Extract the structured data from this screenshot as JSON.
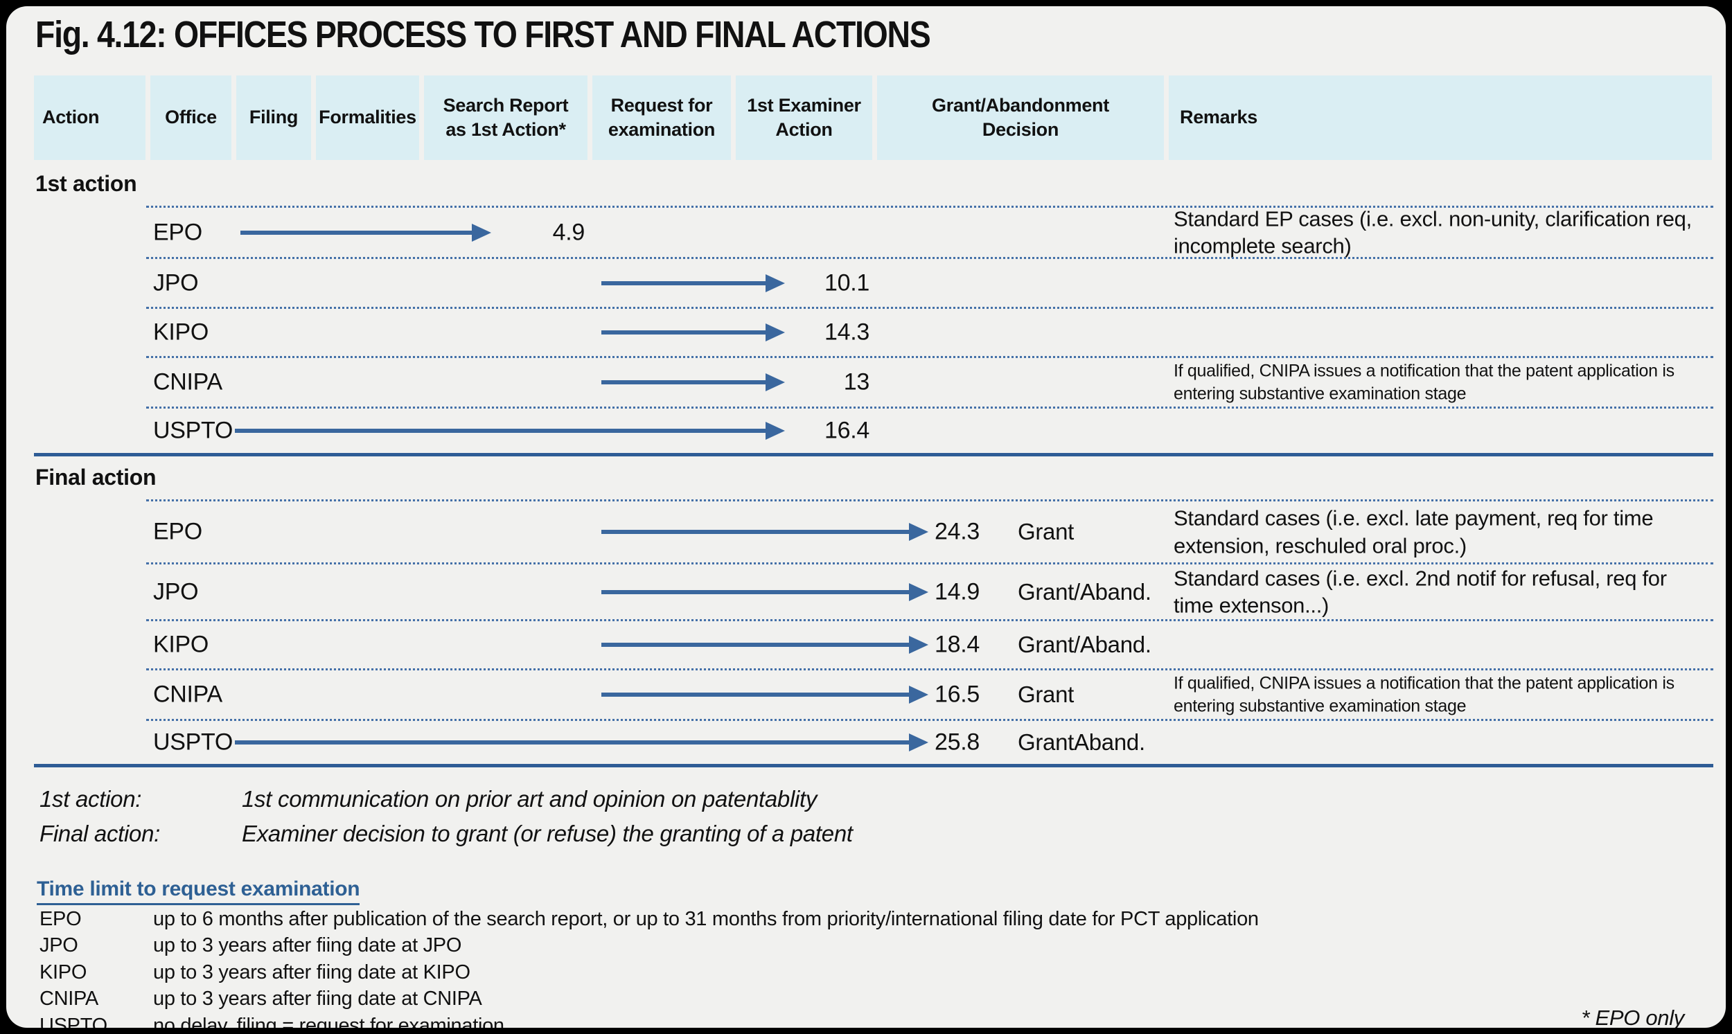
{
  "title": "Fig. 4.12: OFFICES PROCESS TO FIRST AND FINAL ACTIONS",
  "columns": [
    "Action",
    "Office",
    "Filing",
    "Formalities",
    "Search  Report\nas 1st Action*",
    "Request for\nexamination",
    "1st Examiner\nAction",
    "Grant/Abandonment\nDecision",
    "Remarks"
  ],
  "sections": [
    {
      "label": "1st action",
      "rows": [
        {
          "office": "EPO",
          "value": "4.9",
          "remark": "Standard EP cases (i.e. excl. non-unity, clarification req, incomplete search)",
          "arrow": {
            "from": "Filing",
            "to": "Search Report as 1st Action"
          }
        },
        {
          "office": "JPO",
          "value": "10.1",
          "remark": "",
          "arrow": {
            "from": "Request for examination",
            "to": "1st Examiner Action"
          }
        },
        {
          "office": "KIPO",
          "value": "14.3",
          "remark": "",
          "arrow": {
            "from": "Request for examination",
            "to": "1st Examiner Action"
          }
        },
        {
          "office": "CNIPA",
          "value": "13",
          "remark": "If qualified, CNIPA issues a notification that the patent application is entering substantive examination stage",
          "arrow": {
            "from": "Request for examination",
            "to": "1st Examiner Action"
          }
        },
        {
          "office": "USPTO",
          "value": "16.4",
          "remark": "",
          "arrow": {
            "from": "Filing",
            "to": "1st Examiner Action"
          }
        }
      ]
    },
    {
      "label": "Final action",
      "rows": [
        {
          "office": "EPO",
          "value": "24.3",
          "decision": "Grant",
          "remark": "Standard cases (i.e. excl. late payment, req for time extension, reschuled oral proc.)",
          "arrow": {
            "from": "Request for examination",
            "to": "Grant/Abandonment Decision"
          }
        },
        {
          "office": "JPO",
          "value": "14.9",
          "decision": "Grant/Aband.",
          "remark": "Standard cases (i.e. excl. 2nd notif for refusal, req for time extenson...)",
          "arrow": {
            "from": "Request for examination",
            "to": "Grant/Abandonment Decision"
          }
        },
        {
          "office": "KIPO",
          "value": "18.4",
          "decision": "Grant/Aband.",
          "remark": "",
          "arrow": {
            "from": "Request for examination",
            "to": "Grant/Abandonment Decision"
          }
        },
        {
          "office": "CNIPA",
          "value": "16.5",
          "decision": "Grant",
          "remark": "If qualified, CNIPA issues a notification that the patent application is entering substantive examination stage",
          "arrow": {
            "from": "Request for examination",
            "to": "Grant/Abandonment Decision"
          }
        },
        {
          "office": "USPTO",
          "value": "25.8",
          "decision": "GrantAband.",
          "remark": "",
          "arrow": {
            "from": "Filing",
            "to": "Grant/Abandonment Decision"
          }
        }
      ]
    }
  ],
  "definitions": [
    {
      "term": "1st action:",
      "text": "1st communication on prior art and opinion on patentablity"
    },
    {
      "term": "Final action:",
      "text": "Examiner decision to grant (or refuse) the granting of a patent"
    }
  ],
  "time_limit": {
    "heading": "Time limit to request examination",
    "items": [
      {
        "office": "EPO",
        "text": "up to 6 months after publication of the search report, or up to 31 months from priority/international filing date for PCT application"
      },
      {
        "office": "JPO",
        "text": "up to 3 years after fiing date at JPO"
      },
      {
        "office": "KIPO",
        "text": "up to 3 years after fiing date at KIPO"
      },
      {
        "office": "CNIPA",
        "text": "up to 3 years after fiing date at CNIPA"
      },
      {
        "office": "USPTO",
        "text": "no delay, filing = request for examination"
      }
    ]
  },
  "footnote": "* EPO only",
  "colors": {
    "accent_blue": "#3a679e",
    "divider_blue": "#2e5c95",
    "header_bg": "#daeef3",
    "panel_bg": "#f1f1ef",
    "heading_blue": "#2e6094"
  },
  "chart_data": {
    "type": "table",
    "title": "Fig. 4.12: OFFICES PROCESS TO FIRST AND FINAL ACTIONS",
    "categories": [
      "EPO",
      "JPO",
      "KIPO",
      "CNIPA",
      "USPTO"
    ],
    "series": [
      {
        "name": "1st action",
        "values": [
          4.9,
          10.1,
          14.3,
          13,
          16.4
        ]
      },
      {
        "name": "Final action",
        "values": [
          24.3,
          14.9,
          18.4,
          16.5,
          25.8
        ]
      }
    ],
    "final_action_decisions": [
      "Grant",
      "Grant/Aband.",
      "Grant/Aband.",
      "Grant",
      "GrantAband."
    ],
    "process_stages": [
      "Filing",
      "Formalities",
      "Search Report as 1st Action*",
      "Request for examination",
      "1st Examiner Action",
      "Grant/Abandonment Decision"
    ],
    "annotations": [
      "Standard EP cases (i.e. excl. non-unity, clarification req, incomplete search)",
      "If qualified, CNIPA issues a notification that the patent application is entering substantive examination stage",
      "Standard cases (i.e. excl. late payment, req for time extension, reschuled oral proc.)",
      "Standard cases (i.e. excl. 2nd notif for refusal, req for time extenson...)",
      "* EPO only"
    ]
  }
}
